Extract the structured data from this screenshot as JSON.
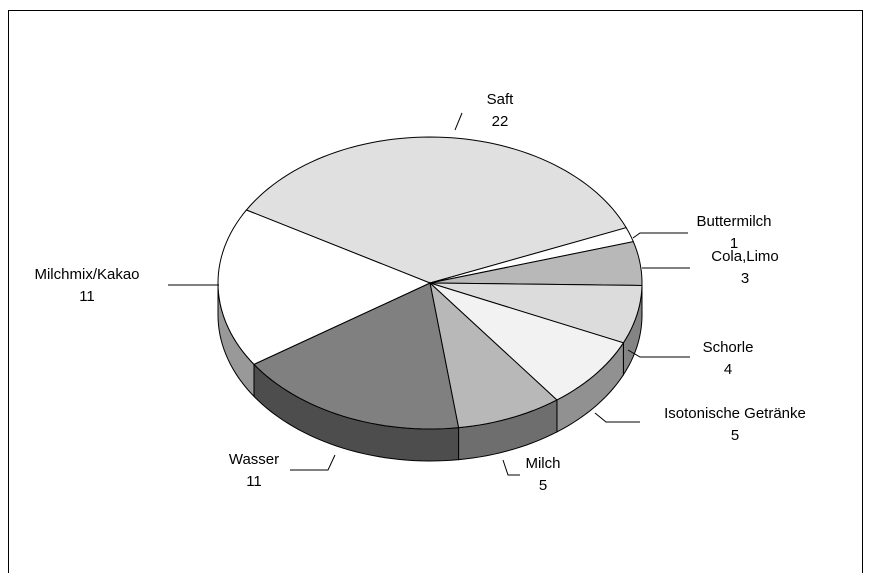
{
  "chart_data": {
    "type": "pie",
    "categories": [
      "Saft",
      "Buttermilch",
      "Cola,Limo",
      "Schorle",
      "Isotonische Getränke",
      "Milch",
      "Wasser",
      "Milchmix/Kakao"
    ],
    "values": [
      22,
      1,
      3,
      4,
      5,
      5,
      11,
      11
    ],
    "colors": [
      "#e0e0e0",
      "#ffffff",
      "#b8b8b8",
      "#dcdcdc",
      "#f2f2f2",
      "#b8b8b8",
      "#808080",
      "#ffffff"
    ]
  }
}
